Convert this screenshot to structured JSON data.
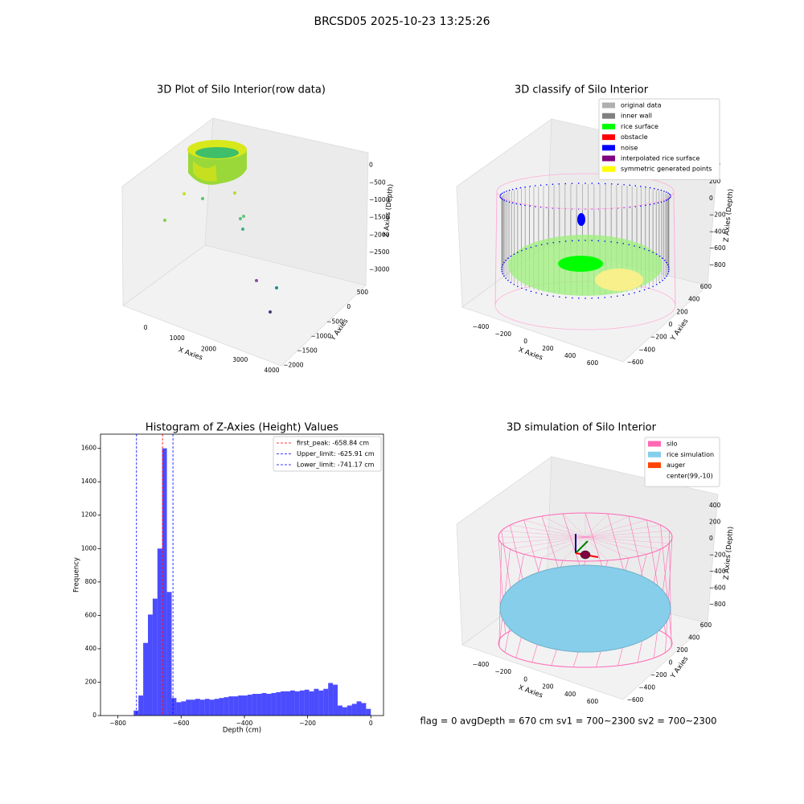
{
  "figure_title": "BRCSD05 2025-10-23 13:25:26",
  "footer_text": "flag = 0     avgDepth = 670 cm  sv1 = 700~2300  sv2 = 700~2300",
  "chart_data": [
    {
      "type": "scatter3d",
      "title": "3D Plot of Silo Interior(row data)",
      "xlabel": "X Axies",
      "ylabel": "Y Axies",
      "zlabel": "Z Axies (Depth)",
      "xlim": [
        -700,
        4300
      ],
      "xticks": [
        0,
        1000,
        2000,
        3000,
        4000
      ],
      "ylim": [
        -2200,
        700
      ],
      "yticks": [
        {
          "value": -2000,
          "label": "−2000"
        },
        {
          "value": -1500,
          "label": "−1500"
        },
        {
          "value": -1000,
          "label": "−1000"
        },
        {
          "value": -500,
          "label": "−500"
        },
        0,
        500
      ],
      "zlim": [
        -3100,
        200
      ],
      "zticks": [
        {
          "value": -3000,
          "label": "−3000"
        },
        {
          "value": -2500,
          "label": "−2500"
        },
        {
          "value": -2000,
          "label": "−2000"
        },
        {
          "value": -1500,
          "label": "−1500"
        },
        {
          "value": -1000,
          "label": "−1000"
        },
        {
          "value": -500,
          "label": "−500"
        },
        0
      ]
    },
    {
      "type": "scatter3d",
      "title": "3D classify of Silo Interior",
      "xlabel": "X Axies",
      "ylabel": "Y Axies",
      "zlabel": "Z Axies (Depth)",
      "xlim": [
        -520,
        700
      ],
      "xticks": [
        {
          "value": -400,
          "label": "−400"
        },
        {
          "value": -200,
          "label": "−200"
        },
        0,
        200,
        400,
        600
      ],
      "ylim": [
        -700,
        700
      ],
      "yticks": [
        {
          "value": -600,
          "label": "−600"
        },
        {
          "value": -400,
          "label": "−400"
        },
        {
          "value": -200,
          "label": "−200"
        },
        0,
        200,
        400,
        600
      ],
      "zlim": [
        -880,
        480
      ],
      "zticks": [
        {
          "value": -800,
          "label": "−800"
        },
        {
          "value": -600,
          "label": "−600"
        },
        {
          "value": -400,
          "label": "−400"
        },
        {
          "value": -200,
          "label": "−200"
        },
        0,
        200,
        400
      ],
      "legend": [
        {
          "name": "original data",
          "color": "#b0b0b0"
        },
        {
          "name": "inner wall",
          "color": "#808080"
        },
        {
          "name": "rice surface",
          "color": "#00ff00"
        },
        {
          "name": "obstacle",
          "color": "#ff0000"
        },
        {
          "name": "noise",
          "color": "#0000ff"
        },
        {
          "name": "interpolated rice surface",
          "color": "#800080"
        },
        {
          "name": "symmetric generated points",
          "color": "#ffff00"
        }
      ]
    },
    {
      "type": "histogram",
      "title": "Histogram of Z-Axies (Height) Values",
      "xlabel": "Depth (cm)",
      "ylabel": "Frequency",
      "color": "#0000ff",
      "alpha": 0.7,
      "bins": [
        -750,
        -735,
        -720,
        -705,
        -690,
        -675,
        -660,
        -645,
        -630,
        -615,
        -600,
        -585,
        -570,
        -555,
        -540,
        -525,
        -510,
        -495,
        -480,
        -465,
        -450,
        -435,
        -420,
        -405,
        -390,
        -375,
        -360,
        -345,
        -330,
        -315,
        -300,
        -285,
        -270,
        -255,
        -240,
        -225,
        -210,
        -195,
        -180,
        -165,
        -150,
        -135,
        -120,
        -105,
        -90,
        -75,
        -60,
        -45,
        -30,
        -15,
        0
      ],
      "values": [
        30,
        120,
        435,
        605,
        700,
        1000,
        1600,
        740,
        105,
        80,
        85,
        95,
        95,
        100,
        95,
        100,
        95,
        100,
        105,
        110,
        115,
        115,
        120,
        120,
        125,
        130,
        130,
        135,
        130,
        135,
        140,
        145,
        145,
        150,
        145,
        150,
        155,
        145,
        160,
        150,
        160,
        195,
        185,
        60,
        50,
        60,
        70,
        85,
        75,
        40
      ],
      "xlim": [
        -855,
        40
      ],
      "xticks": [
        {
          "value": -800,
          "label": "−800"
        },
        {
          "value": -600,
          "label": "−600"
        },
        {
          "value": -400,
          "label": "−400"
        },
        {
          "value": -200,
          "label": "−200"
        },
        0
      ],
      "ylim": [
        0,
        1685
      ],
      "yticks": [
        0,
        200,
        400,
        600,
        800,
        1000,
        1200,
        1400,
        1600
      ],
      "lines": [
        {
          "name": "first_peak: -658.84 cm",
          "value": -658.84,
          "color": "#ff0000"
        },
        {
          "name": "Upper_limit: -625.91 cm",
          "value": -625.91,
          "color": "#0000ff"
        },
        {
          "name": "Lower_limit: -741.17 cm",
          "value": -741.17,
          "color": "#0000ff"
        }
      ]
    },
    {
      "type": "scatter3d",
      "title": "3D simulation of Silo Interior",
      "xlabel": "X Axies",
      "ylabel": "Y Axies",
      "zlabel": "Z Axies (Depth)",
      "xlim": [
        -520,
        700
      ],
      "xticks": [
        {
          "value": -400,
          "label": "−400"
        },
        {
          "value": -200,
          "label": "−200"
        },
        0,
        200,
        400,
        600
      ],
      "ylim": [
        -700,
        700
      ],
      "yticks": [
        {
          "value": -600,
          "label": "−600"
        },
        {
          "value": -400,
          "label": "−400"
        },
        {
          "value": -200,
          "label": "−200"
        },
        0,
        200,
        400,
        600
      ],
      "zlim": [
        -880,
        480
      ],
      "zticks": [
        {
          "value": -800,
          "label": "−800"
        },
        {
          "value": -600,
          "label": "−600"
        },
        {
          "value": -400,
          "label": "−400"
        },
        {
          "value": -200,
          "label": "−200"
        },
        0,
        200,
        400
      ],
      "legend": [
        {
          "name": "silo",
          "color": "#ff69b4"
        },
        {
          "name": "rice simulation",
          "color": "#87ceeb"
        },
        {
          "name": "auger",
          "color": "#ff4500"
        },
        {
          "name": "center(99,-10)",
          "color": "#ffffff"
        }
      ]
    }
  ]
}
